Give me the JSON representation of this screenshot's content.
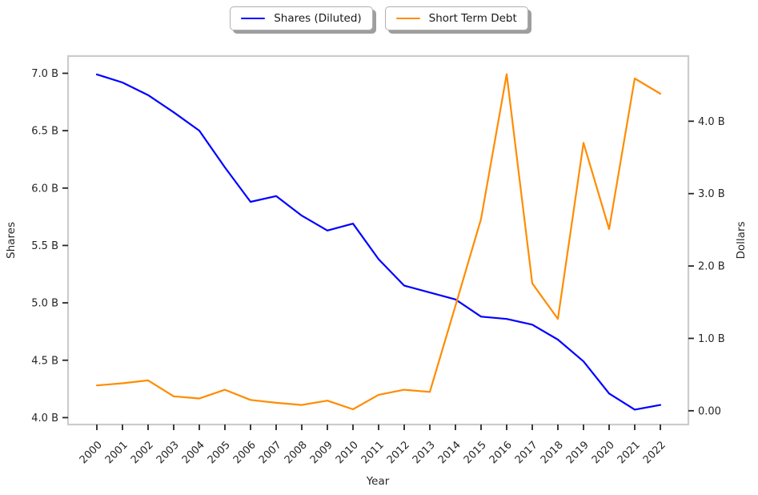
{
  "legend": [
    {
      "label": "Shares (Diluted)",
      "color": "#0000ff"
    },
    {
      "label": "Short Term Debt",
      "color": "#ff8c00"
    }
  ],
  "chart_data": {
    "type": "line",
    "title": "",
    "xlabel": "Year",
    "grid": false,
    "legend_position": "top-center-outside",
    "units": "billions",
    "x": [
      2000,
      2001,
      2002,
      2003,
      2004,
      2005,
      2006,
      2007,
      2008,
      2009,
      2010,
      2011,
      2012,
      2013,
      2014,
      2015,
      2016,
      2017,
      2018,
      2019,
      2020,
      2021,
      2022
    ],
    "series": [
      {
        "name": "Shares (Diluted)",
        "axis": "left",
        "color": "#0000ff",
        "values": [
          6.99,
          6.92,
          6.81,
          6.66,
          6.5,
          6.18,
          5.88,
          5.93,
          5.76,
          5.63,
          5.69,
          5.38,
          5.15,
          5.09,
          5.03,
          4.88,
          4.86,
          4.81,
          4.68,
          4.49,
          4.21,
          4.07,
          4.11
        ]
      },
      {
        "name": "Short Term Debt",
        "axis": "right",
        "color": "#ff8c00",
        "values": [
          0.35,
          0.38,
          0.42,
          0.2,
          0.17,
          0.29,
          0.15,
          0.11,
          0.08,
          0.14,
          0.02,
          0.22,
          0.29,
          0.26,
          1.45,
          2.65,
          4.65,
          1.76,
          1.27,
          3.7,
          2.51,
          4.59,
          4.38
        ]
      }
    ],
    "left_axis": {
      "label": "Shares",
      "ticks": [
        4.0,
        4.5,
        5.0,
        5.5,
        6.0,
        6.5,
        7.0
      ],
      "tick_labels": [
        "4.0 B",
        "4.5 B",
        "5.0 B",
        "5.5 B",
        "6.0 B",
        "6.5 B",
        "7.0 B"
      ],
      "lim": [
        3.94,
        7.15
      ]
    },
    "right_axis": {
      "label": "Dollars",
      "ticks": [
        0.0,
        1.0,
        2.0,
        3.0,
        4.0
      ],
      "tick_labels": [
        "0.00",
        "1.0 B",
        "2.0 B",
        "3.0 B",
        "4.0 B"
      ],
      "lim": [
        -0.19,
        4.9
      ]
    },
    "style": {
      "spine_color": "#cccccc",
      "tick_color": "#262626",
      "tick_label_color": "#262626",
      "background": "#ffffff"
    }
  }
}
